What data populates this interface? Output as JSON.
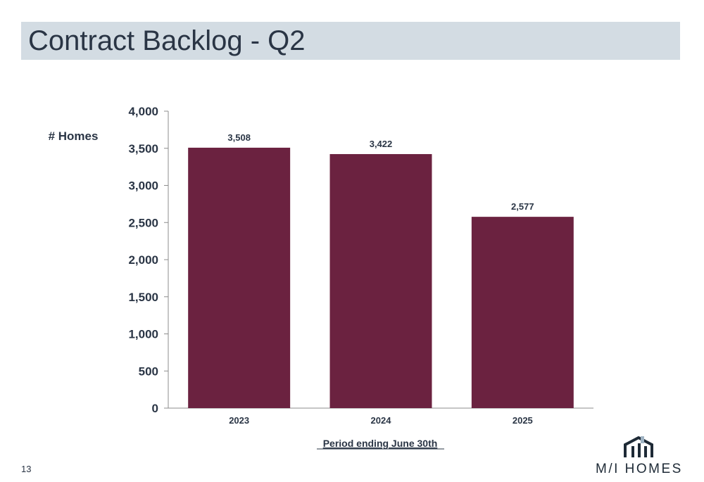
{
  "slide": {
    "title": "Contract Backlog - Q2",
    "page_number": "13"
  },
  "logo": {
    "text": "M/I HOMES",
    "icon": "house-icon"
  },
  "colors": {
    "bar": "#6b2240",
    "title_bar_bg": "#d3dce3",
    "text": "#2a3545"
  },
  "chart_data": {
    "type": "bar",
    "categories": [
      "2023",
      "2024",
      "2025"
    ],
    "values": [
      3508,
      3422,
      2577
    ],
    "data_labels": [
      "3,508",
      "3,422",
      "2,577"
    ],
    "ylabel": "# Homes",
    "xlabel": "Period ending June 30th",
    "ylim": [
      0,
      4000
    ],
    "yticks": [
      0,
      500,
      1000,
      1500,
      2000,
      2500,
      3000,
      3500,
      4000
    ],
    "ytick_labels": [
      "0",
      "500",
      "1,000",
      "1,500",
      "2,000",
      "2,500",
      "3,000",
      "3,500",
      "4,000"
    ],
    "grid": false,
    "legend": "none"
  }
}
